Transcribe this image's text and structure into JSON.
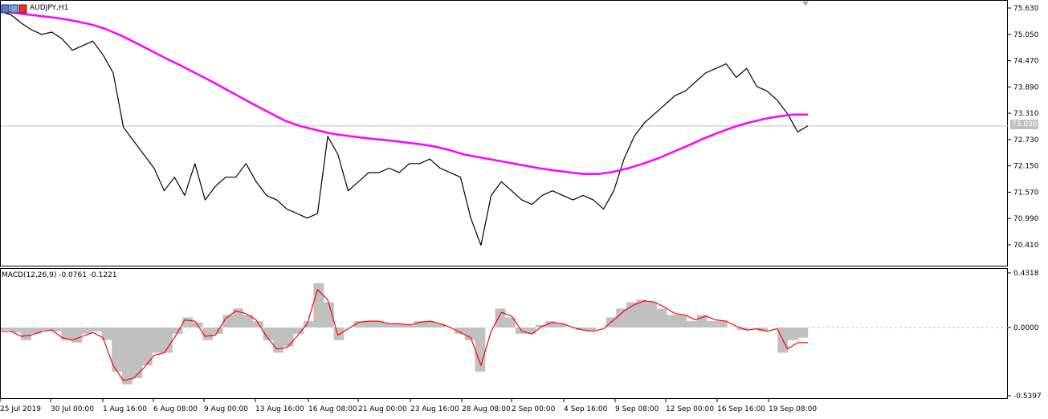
{
  "chart_title": "AUDJPY,H1",
  "macd_title": "MACD(12,26,9) -0.0761 -0.1221",
  "current_price_label": "73.030",
  "colors": {
    "price_line": "#000000",
    "ma_line": "#ff00ff",
    "macd_hist": "#c0c0c0",
    "signal_line": "#ff0000",
    "hline": "#c0c0c0"
  },
  "chart_data": [
    {
      "type": "line",
      "title": "AUDJPY,H1",
      "y_axis_ticks": [
        "75.630",
        "75.050",
        "74.470",
        "73.890",
        "73.310",
        "72.730",
        "72.150",
        "71.570",
        "70.990",
        "70.410"
      ],
      "ylim": [
        70.05,
        75.75
      ],
      "current_price": 73.03,
      "x_axis_ticks": [
        "25 Jul 2019",
        "30 Jul 00:00",
        "1 Aug 16:00",
        "6 Aug 08:00",
        "9 Aug 00:00",
        "13 Aug 16:00",
        "16 Aug 08:00",
        "21 Aug 00:00",
        "23 Aug 16:00",
        "28 Aug 08:00",
        "2 Sep 00:00",
        "4 Sep 16:00",
        "9 Sep 08:00",
        "12 Sep 00:00",
        "16 Sep 16:00",
        "19 Sep 08:00"
      ],
      "series": [
        {
          "values": [
            75.55,
            75.48,
            75.3,
            75.15,
            75.05,
            75.1,
            74.95,
            74.7,
            74.8,
            74.9,
            74.6,
            74.2,
            73.0,
            72.7,
            72.4,
            72.1,
            71.6,
            71.9,
            71.5,
            72.2,
            71.4,
            71.7,
            71.9,
            71.9,
            72.2,
            71.8,
            71.5,
            71.4,
            71.2,
            71.1,
            71.0,
            71.1,
            72.8,
            72.4,
            71.6,
            71.8,
            72.0,
            72.0,
            72.1,
            72.0,
            72.2,
            72.2,
            72.3,
            72.1,
            72.0,
            71.9,
            71.0,
            70.4,
            71.5,
            71.8,
            71.6,
            71.4,
            71.3,
            71.5,
            71.6,
            71.5,
            71.4,
            71.5,
            71.4,
            71.2,
            71.6,
            72.3,
            72.8,
            73.1,
            73.3,
            73.5,
            73.7,
            73.8,
            74.0,
            74.2,
            74.3,
            74.4,
            74.1,
            74.3,
            73.9,
            73.8,
            73.6,
            73.3,
            72.9,
            73.03
          ],
          "style": "ohlc-close"
        },
        {
          "values": [
            75.56,
            75.52,
            75.48,
            75.44,
            75.4,
            75.34,
            75.27,
            75.17,
            75.03,
            74.87,
            74.7,
            74.53,
            74.37,
            74.2,
            74.03,
            73.85,
            73.67,
            73.49,
            73.32,
            73.15,
            73.03,
            72.95,
            72.87,
            72.82,
            72.78,
            72.74,
            72.71,
            72.67,
            72.63,
            72.58,
            72.5,
            72.4,
            72.34,
            72.28,
            72.22,
            72.16,
            72.1,
            72.05,
            72.01,
            71.97,
            71.97,
            72.02,
            72.1,
            72.2,
            72.32,
            72.46,
            72.6,
            72.75,
            72.88,
            73.0,
            73.1,
            73.18,
            73.24,
            73.28,
            73.28
          ],
          "color": "#ff00ff"
        }
      ]
    },
    {
      "type": "bar",
      "title": "MACD(12,26,9) -0.0761 -0.1221",
      "y_axis_ticks": [
        "0.4318",
        "0.0000",
        "-0.5397"
      ],
      "ylim": [
        -0.5397,
        0.4318
      ],
      "series": [
        {
          "values": [
            -0.02,
            -0.04,
            -0.1,
            -0.05,
            -0.02,
            -0.03,
            -0.1,
            -0.12,
            -0.05,
            -0.03,
            -0.1,
            -0.35,
            -0.45,
            -0.4,
            -0.3,
            -0.2,
            -0.2,
            -0.05,
            0.08,
            0.04,
            -0.1,
            -0.05,
            0.1,
            0.15,
            0.1,
            0.05,
            -0.1,
            -0.2,
            -0.15,
            -0.05,
            0.05,
            0.35,
            0.2,
            -0.1,
            0.0,
            0.05,
            0.05,
            0.05,
            0.03,
            0.03,
            0.02,
            0.05,
            0.05,
            0.03,
            0.0,
            -0.05,
            -0.1,
            -0.35,
            0.0,
            0.15,
            0.08,
            -0.05,
            -0.05,
            0.02,
            0.05,
            0.03,
            0.0,
            -0.02,
            -0.03,
            0.0,
            0.08,
            0.15,
            0.2,
            0.22,
            0.2,
            0.15,
            0.1,
            0.1,
            0.05,
            0.1,
            0.05,
            0.05,
            0.0,
            -0.02,
            0.0,
            -0.03,
            0.0,
            -0.2,
            -0.1,
            -0.08
          ]
        },
        {
          "values": [
            -0.03,
            -0.03,
            -0.07,
            -0.06,
            -0.03,
            -0.02,
            -0.08,
            -0.1,
            -0.07,
            -0.04,
            -0.08,
            -0.3,
            -0.42,
            -0.4,
            -0.32,
            -0.22,
            -0.2,
            -0.08,
            0.06,
            0.05,
            -0.07,
            -0.06,
            0.07,
            0.13,
            0.11,
            0.06,
            -0.07,
            -0.17,
            -0.16,
            -0.07,
            0.03,
            0.3,
            0.22,
            -0.06,
            -0.01,
            0.04,
            0.05,
            0.05,
            0.03,
            0.03,
            0.02,
            0.04,
            0.05,
            0.03,
            0.0,
            -0.04,
            -0.08,
            -0.3,
            -0.03,
            0.12,
            0.09,
            -0.03,
            -0.05,
            0.01,
            0.04,
            0.03,
            0.0,
            -0.02,
            -0.03,
            -0.01,
            0.06,
            0.13,
            0.18,
            0.21,
            0.2,
            0.16,
            0.11,
            0.1,
            0.06,
            0.09,
            0.06,
            0.05,
            0.01,
            -0.02,
            -0.01,
            -0.03,
            -0.01,
            -0.17,
            -0.12,
            -0.12
          ],
          "color": "#ff0000"
        }
      ]
    }
  ]
}
